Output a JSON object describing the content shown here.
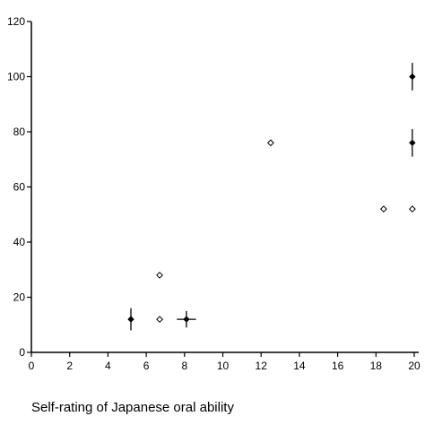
{
  "chart_data": {
    "type": "scatter",
    "title": "",
    "xlabel": "Self-rating of Japanese oral ability",
    "ylabel": "",
    "xlim": [
      0,
      20
    ],
    "ylim": [
      0,
      120
    ],
    "x_ticks": [
      "0",
      "2",
      "4",
      "6",
      "8",
      "10",
      "12",
      "14",
      "16",
      "18",
      "20"
    ],
    "y_ticks": [
      "0",
      "20",
      "40",
      "60",
      "80",
      "100",
      "120"
    ],
    "grid": false,
    "legend": "none",
    "series": [
      {
        "marker": "filled-diamond-with-error-bars",
        "color": "#000000",
        "points": [
          {
            "x": 5.2,
            "y": 12,
            "y_err": 4,
            "x_err": 0
          },
          {
            "x": 8.1,
            "y": 12,
            "y_err": 3,
            "x_err": 0.5
          },
          {
            "x": 19.9,
            "y": 100,
            "y_err": 5,
            "x_err": 0
          },
          {
            "x": 19.9,
            "y": 76,
            "y_err": 5,
            "x_err": 0
          }
        ]
      },
      {
        "marker": "open-diamond",
        "color": "#000000",
        "points": [
          {
            "x": 6.7,
            "y": 28
          },
          {
            "x": 6.7,
            "y": 12
          },
          {
            "x": 12.5,
            "y": 76
          },
          {
            "x": 18.4,
            "y": 52
          },
          {
            "x": 19.9,
            "y": 52
          }
        ]
      }
    ]
  }
}
